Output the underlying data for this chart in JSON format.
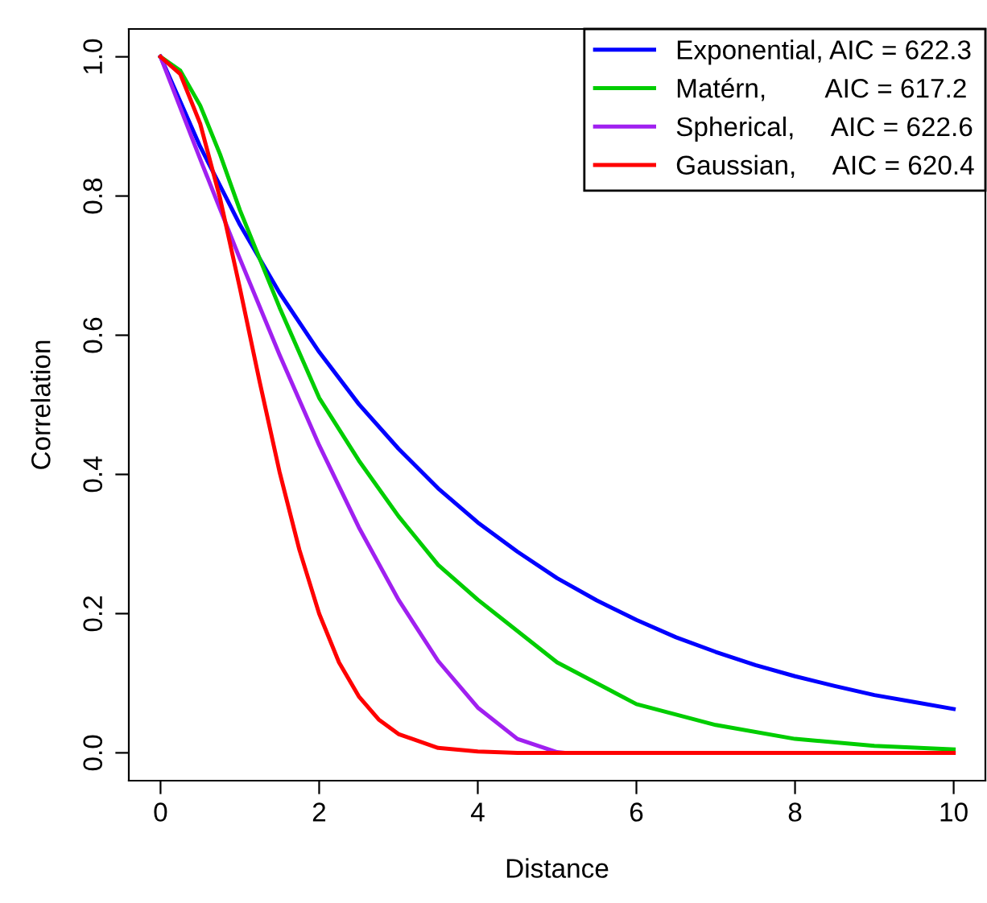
{
  "chart_data": {
    "type": "line",
    "xlabel": "Distance",
    "ylabel": "Correlation",
    "xlim": [
      -0.4,
      10.4
    ],
    "ylim": [
      -0.04,
      1.04
    ],
    "xticks": [
      0,
      2,
      4,
      6,
      8,
      10
    ],
    "yticks": [
      {
        "value": 0,
        "label": "0.0"
      },
      {
        "value": 0.2,
        "label": "0.2"
      },
      {
        "value": 0.4,
        "label": "0.4"
      },
      {
        "value": 0.6,
        "label": "0.6"
      },
      {
        "value": 0.8,
        "label": "0.8"
      },
      {
        "value": 1,
        "label": "1.0"
      }
    ],
    "grid": false,
    "legend": "top right",
    "line_style": "solid",
    "marker": "none",
    "series": [
      {
        "name": "Exponential, AIC = 622.3",
        "color": "#0000ff",
        "x": [
          0,
          0.5,
          1,
          1.5,
          2,
          2.5,
          3,
          3.5,
          4,
          4.5,
          5,
          5.5,
          6,
          6.5,
          7,
          7.5,
          8,
          8.5,
          9,
          9.5,
          10
        ],
        "values": [
          1,
          0.871,
          0.759,
          0.661,
          0.576,
          0.501,
          0.437,
          0.38,
          0.331,
          0.289,
          0.251,
          0.219,
          0.191,
          0.166,
          0.145,
          0.126,
          0.11,
          0.096,
          0.083,
          0.073,
          0.063
        ]
      },
      {
        "name": "Matérn,        AIC = 617.2",
        "color": "#00cd00",
        "x": [
          0,
          0.25,
          0.5,
          0.75,
          1,
          1.5,
          2,
          2.5,
          3,
          3.5,
          4,
          5,
          6,
          7,
          8,
          9,
          10
        ],
        "values": [
          1,
          0.98,
          0.93,
          0.86,
          0.78,
          0.64,
          0.51,
          0.42,
          0.34,
          0.27,
          0.22,
          0.13,
          0.07,
          0.04,
          0.02,
          0.01,
          0.005
        ]
      },
      {
        "name": "Spherical,     AIC = 622.6",
        "color": "#a020f0",
        "x": [
          0,
          0.5,
          1,
          1.5,
          2,
          2.5,
          3,
          3.5,
          4,
          4.5,
          5,
          5.1,
          10
        ],
        "values": [
          1,
          0.853,
          0.71,
          0.572,
          0.442,
          0.324,
          0.22,
          0.132,
          0.065,
          0.02,
          0.001,
          0,
          0
        ]
      },
      {
        "name": "Gaussian,     AIC = 620.4",
        "color": "#ff0000",
        "x": [
          0,
          0.25,
          0.5,
          0.75,
          1,
          1.25,
          1.5,
          1.75,
          2,
          2.25,
          2.5,
          2.75,
          3,
          3.5,
          4,
          4.5,
          10
        ],
        "values": [
          1,
          0.975,
          0.904,
          0.797,
          0.668,
          0.533,
          0.404,
          0.292,
          0.2,
          0.13,
          0.081,
          0.048,
          0.027,
          0.007,
          0.002,
          0,
          0
        ]
      }
    ]
  }
}
